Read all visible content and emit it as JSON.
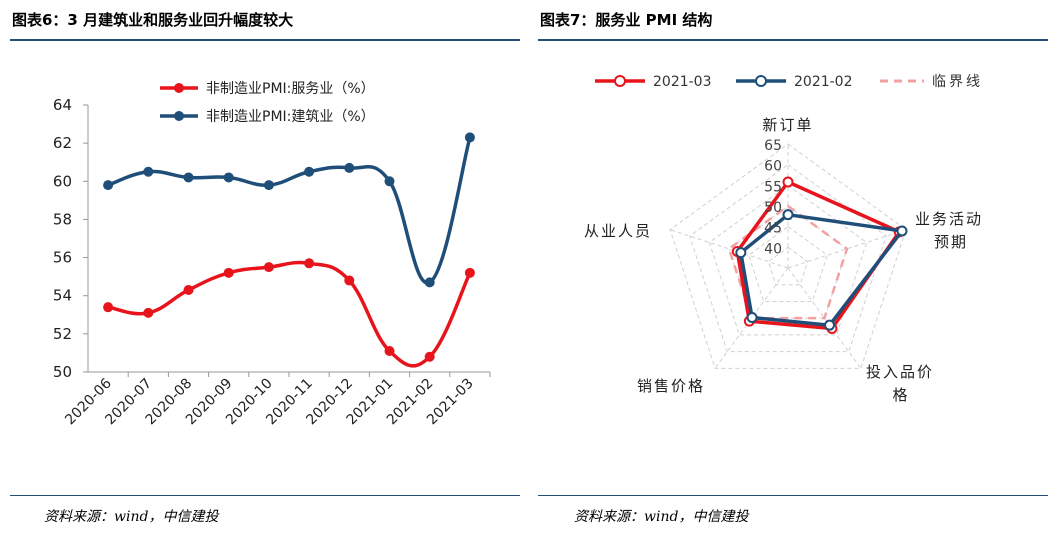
{
  "left_panel": {
    "title": "图表6：3 月建筑业和服务业回升幅度较大",
    "source": "资料来源：wind，中信建投"
  },
  "right_panel": {
    "title": "图表7：服务业 PMI 结构",
    "source": "资料来源：wind，中信建投"
  },
  "colors": {
    "red": "#e8141c",
    "blue": "#1f4e79",
    "dash": "#f4a0a0",
    "grid": "#c8c8c8",
    "rule": "#1f4e79"
  },
  "chart_data": [
    {
      "type": "line",
      "title": "3 月建筑业和服务业回升幅度较大",
      "categories": [
        "2020-06",
        "2020-07",
        "2020-08",
        "2020-09",
        "2020-10",
        "2020-11",
        "2020-12",
        "2021-01",
        "2021-02",
        "2021-03"
      ],
      "series": [
        {
          "name": "非制造业PMI:服务业（%）",
          "color": "#e8141c",
          "values": [
            53.4,
            53.1,
            54.3,
            55.2,
            55.5,
            55.7,
            54.8,
            51.1,
            50.8,
            55.2
          ]
        },
        {
          "name": "非制造业PMI:建筑业（%）",
          "color": "#1f4e79",
          "values": [
            59.8,
            60.5,
            60.2,
            60.2,
            59.8,
            60.5,
            60.7,
            60.0,
            54.7,
            62.3
          ]
        }
      ],
      "ylim": [
        50,
        64
      ],
      "yticks": [
        "50",
        "52",
        "54",
        "56",
        "58",
        "60",
        "62",
        "64"
      ],
      "legend": "top-left",
      "grid": false
    },
    {
      "type": "radar",
      "title": "服务业 PMI 结构",
      "axes": [
        "新订单",
        "业务活动预期",
        "投入品价格",
        "销售价格",
        "从业人员"
      ],
      "axis_label_lines": [
        [
          "新订单"
        ],
        [
          "业务活动",
          "预期"
        ],
        [
          "投入品价",
          "格"
        ],
        [
          "销售价格"
        ],
        [
          "从业人员"
        ]
      ],
      "rlim": [
        35,
        65
      ],
      "rticks": [
        "40",
        "45",
        "50",
        "55",
        "60",
        "65"
      ],
      "series": [
        {
          "name": "2021-03",
          "color": "#e8141c",
          "values": [
            55.8,
            63.3,
            53.1,
            50.9,
            47.9
          ]
        },
        {
          "name": "2021-02",
          "color": "#1f4e79",
          "values": [
            47.9,
            64.0,
            52.1,
            49.8,
            47.0
          ]
        },
        {
          "name": "临界线",
          "color": "#f4a0a0",
          "dashed": true,
          "values": [
            50,
            50,
            50,
            50,
            50
          ]
        }
      ],
      "legend": "top"
    }
  ]
}
